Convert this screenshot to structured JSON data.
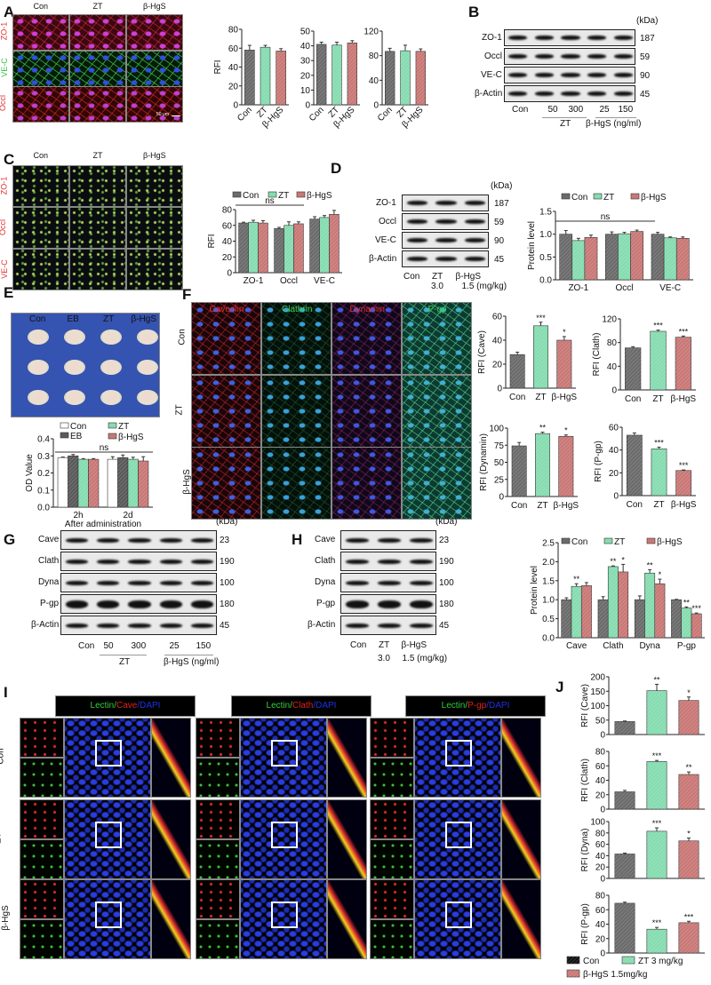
{
  "panel_letters": [
    "A",
    "B",
    "C",
    "D",
    "E",
    "F",
    "G",
    "H",
    "I",
    "J"
  ],
  "colors": {
    "con": "#6b6b6b",
    "zt": "#86dcb0",
    "hgs": "#c97876",
    "eb": "#5a5a5a",
    "con_white": "#ffffff"
  },
  "panel_a": {
    "columns": [
      "Con",
      "ZT",
      "β-HgS"
    ],
    "rows": [
      "ZO-1",
      "VE-C",
      "Occl"
    ],
    "scale_bar": "50 μm"
  },
  "panel_b": {
    "rows": [
      "ZO-1",
      "Occl",
      "VE-C",
      "β-Actin"
    ],
    "kda": [
      "187",
      "59",
      "90",
      "45"
    ],
    "kda_unit": "(kDa)",
    "lanes": [
      "Con",
      "50",
      "300",
      "25",
      "150"
    ],
    "groups": [
      "ZT",
      "β-HgS (ng/ml)"
    ]
  },
  "panel_c": {
    "columns": [
      "Con",
      "ZT",
      "β-HgS"
    ],
    "rows": [
      "ZO-1",
      "Occl",
      "VE-C"
    ]
  },
  "panel_d": {
    "rows": [
      "ZO-1",
      "Occl",
      "VE-C",
      "β-Actin"
    ],
    "kda": [
      "187",
      "59",
      "90",
      "45"
    ],
    "kda_unit": "(kDa)",
    "lanes": [
      "Con",
      "ZT",
      "β-HgS"
    ],
    "doses": [
      "3.0",
      "1.5 (mg/kg)"
    ]
  },
  "panel_e": {
    "columns": [
      "Con",
      "EB",
      "ZT",
      "β-HgS"
    ]
  },
  "panel_f": {
    "columns": [
      "Caveolin",
      "Clathrin",
      "Dynamin",
      "P-gp"
    ],
    "rows": [
      "Con",
      "ZT",
      "β-HgS"
    ]
  },
  "panel_g": {
    "rows": [
      "Cave",
      "Clath",
      "Dyna",
      "P-gp",
      "β-Actin"
    ],
    "kda": [
      "23",
      "190",
      "100",
      "180",
      "45"
    ],
    "kda_unit": "(kDa)",
    "lanes": [
      "Con",
      "50",
      "300",
      "25",
      "150"
    ],
    "groups": [
      "ZT",
      "β-HgS (ng/ml)"
    ]
  },
  "panel_h": {
    "rows": [
      "Cave",
      "Clath",
      "Dyna",
      "P-gp",
      "β-Actin"
    ],
    "kda": [
      "23",
      "190",
      "100",
      "180",
      "45"
    ],
    "kda_unit": "(kDa)",
    "lanes": [
      "Con",
      "ZT",
      "β-HgS"
    ],
    "doses": [
      "3.0",
      "1.5 (mg/kg)"
    ]
  },
  "panel_i": {
    "headers": [
      [
        "Lectin/",
        "Cave",
        "/DAPI"
      ],
      [
        "Lectin/",
        "Clath",
        "/DAPI"
      ],
      [
        "Lectin/",
        "P-gp",
        "/DAPI"
      ]
    ],
    "rows": [
      "Con",
      "ZT",
      "β-HgS"
    ]
  },
  "chart_data": [
    {
      "panel": "A",
      "type": "bar",
      "title": "",
      "ylabel": "RFI",
      "categories": [
        "Con",
        "ZT",
        "β-HgS"
      ],
      "values": [
        58,
        61,
        57
      ],
      "errors": [
        5,
        2,
        2.5
      ],
      "ylim": [
        0,
        80
      ],
      "yticks": [
        0,
        20,
        40,
        60,
        80
      ]
    },
    {
      "panel": "A",
      "type": "bar",
      "ylabel": "",
      "categories": [
        "Con",
        "ZT",
        "β-HgS"
      ],
      "values": [
        41,
        40.5,
        42
      ],
      "errors": [
        1.5,
        2,
        1.5
      ],
      "ylim": [
        0,
        50
      ],
      "yticks": [
        0,
        10,
        20,
        30,
        40,
        50
      ]
    },
    {
      "panel": "A",
      "type": "bar",
      "ylabel": "",
      "categories": [
        "Con",
        "ZT",
        "β-HgS"
      ],
      "values": [
        87,
        88,
        87
      ],
      "errors": [
        5,
        9,
        4
      ],
      "ylim": [
        0,
        120
      ],
      "yticks": [
        0,
        40,
        80,
        120
      ]
    },
    {
      "panel": "C",
      "type": "bar",
      "ylabel": "RFI",
      "categories": [
        "ZO-1",
        "Occl",
        "VE-C"
      ],
      "series": [
        {
          "name": "Con",
          "values": [
            63,
            56,
            68
          ],
          "errors": [
            1,
            1.5,
            3
          ]
        },
        {
          "name": "ZT",
          "values": [
            64,
            60,
            70
          ],
          "errors": [
            2.5,
            4.5,
            2.5
          ]
        },
        {
          "name": "β-HgS",
          "values": [
            63,
            62,
            74
          ],
          "errors": [
            3,
            2.5,
            5
          ]
        }
      ],
      "ylim": [
        0,
        80
      ],
      "yticks": [
        0,
        20,
        40,
        60,
        80
      ],
      "legend": "top",
      "annotation": "ns"
    },
    {
      "panel": "D",
      "type": "bar",
      "ylabel": "Protein level",
      "categories": [
        "ZO-1",
        "Occl",
        "VE-C"
      ],
      "series": [
        {
          "name": "Con",
          "values": [
            1.0,
            1.0,
            1.0
          ],
          "errors": [
            0.08,
            0.05,
            0.04
          ]
        },
        {
          "name": "ZT",
          "values": [
            0.86,
            1.01,
            0.92
          ],
          "errors": [
            0.05,
            0.03,
            0.02
          ]
        },
        {
          "name": "β-HgS",
          "values": [
            0.93,
            1.06,
            0.91
          ],
          "errors": [
            0.05,
            0.03,
            0.03
          ]
        }
      ],
      "ylim": [
        0,
        1.5
      ],
      "yticks": [
        "0.0",
        "0.5",
        "1.0",
        "1.5"
      ],
      "legend": "top",
      "annotation": "ns"
    },
    {
      "panel": "E",
      "type": "bar",
      "ylabel": "OD Value",
      "xlabel": "After administration",
      "categories": [
        "2h",
        "2d"
      ],
      "series": [
        {
          "name": "Con",
          "values": [
            0.29,
            0.28
          ],
          "errors": [
            0.003,
            0.015
          ]
        },
        {
          "name": "EB",
          "values": [
            0.3,
            0.29
          ],
          "errors": [
            0.008,
            0.015
          ]
        },
        {
          "name": "ZT",
          "values": [
            0.28,
            0.28
          ],
          "errors": [
            0.004,
            0.012
          ]
        },
        {
          "name": "β-HgS",
          "values": [
            0.28,
            0.27
          ],
          "errors": [
            0.004,
            0.025
          ]
        }
      ],
      "ylim": [
        0,
        0.4
      ],
      "yticks": [
        "0.0",
        "0.1",
        "0.2",
        "0.3",
        "0.4"
      ],
      "legend": "top",
      "annotation": "ns"
    },
    {
      "panel": "F",
      "type": "bar",
      "ylabel": "RFI (Cave)",
      "categories": [
        "Con",
        "ZT",
        "β-HgS"
      ],
      "values": [
        28,
        52,
        40
      ],
      "errors": [
        2,
        3,
        3
      ],
      "significance": [
        "",
        "***",
        "*"
      ],
      "ylim": [
        0,
        60
      ],
      "yticks": [
        0,
        20,
        40,
        60
      ]
    },
    {
      "panel": "F",
      "type": "bar",
      "ylabel": "RFI (Clath)",
      "categories": [
        "Con",
        "ZT",
        "β-HgS"
      ],
      "values": [
        71,
        99,
        89
      ],
      "errors": [
        2,
        2,
        2
      ],
      "significance": [
        "",
        "***",
        "***"
      ],
      "ylim": [
        0,
        120
      ],
      "yticks": [
        0,
        40,
        80,
        120
      ]
    },
    {
      "panel": "F",
      "type": "bar",
      "ylabel": "RFI (Dynamin)",
      "categories": [
        "Con",
        "ZT",
        "β-HgS"
      ],
      "values": [
        74,
        92,
        88
      ],
      "errors": [
        5,
        2,
        2
      ],
      "significance": [
        "",
        "**",
        "*"
      ],
      "ylim": [
        0,
        100
      ],
      "yticks": [
        0,
        25,
        50,
        75,
        100
      ]
    },
    {
      "panel": "F",
      "type": "bar",
      "ylabel": "RFI (P-gp)",
      "categories": [
        "Con",
        "ZT",
        "β-HgS"
      ],
      "values": [
        53,
        41,
        22
      ],
      "errors": [
        2,
        1.5,
        0.5
      ],
      "significance": [
        "",
        "***",
        "***"
      ],
      "ylim": [
        0,
        60
      ],
      "yticks": [
        0,
        20,
        40,
        60
      ]
    },
    {
      "panel": "H",
      "type": "bar",
      "ylabel": "Protein level",
      "categories": [
        "Cave",
        "Clath",
        "Dyna",
        "P-gp"
      ],
      "series": [
        {
          "name": "Con",
          "values": [
            1.0,
            1.0,
            1.0,
            1.0
          ],
          "errors": [
            0.05,
            0.08,
            0.1,
            0.01
          ],
          "significance": [
            "",
            "",
            "",
            ""
          ]
        },
        {
          "name": "ZT",
          "values": [
            1.35,
            1.87,
            1.7,
            0.78
          ],
          "errors": [
            0.07,
            0.02,
            0.09,
            0.03
          ],
          "significance": [
            "**",
            "**",
            "**",
            "**"
          ]
        },
        {
          "name": "β-HgS",
          "values": [
            1.37,
            1.73,
            1.42,
            0.63
          ],
          "errors": [
            0.08,
            0.2,
            0.12,
            0.02
          ],
          "significance": [
            "",
            "*",
            "*",
            "***"
          ]
        }
      ],
      "ylim": [
        0,
        2.5
      ],
      "yticks": [
        "0.0",
        "0.5",
        "1.0",
        "1.5",
        "2.0",
        "2.5"
      ],
      "legend": "top"
    },
    {
      "panel": "J",
      "type": "bar",
      "ylabel": "RFI (Cave)",
      "categories": [
        "Con",
        "ZT 3 mg/kg",
        "β-HgS 1.5mg/kg"
      ],
      "values": [
        45,
        152,
        118
      ],
      "errors": [
        2,
        22,
        12
      ],
      "significance": [
        "",
        "**",
        "*"
      ],
      "ylim": [
        0,
        200
      ],
      "yticks": [
        0,
        50,
        100,
        150,
        200
      ]
    },
    {
      "panel": "J",
      "type": "bar",
      "ylabel": "RFI (Clath)",
      "categories": [
        "Con",
        "ZT 3 mg/kg",
        "β-HgS 1.5mg/kg"
      ],
      "values": [
        24,
        66,
        48
      ],
      "errors": [
        2,
        1.5,
        3.5
      ],
      "significance": [
        "",
        "***",
        "**"
      ],
      "ylim": [
        0,
        80
      ],
      "yticks": [
        0,
        20,
        40,
        60,
        80
      ]
    },
    {
      "panel": "J",
      "type": "bar",
      "ylabel": "RFI (Dyna)",
      "categories": [
        "Con",
        "ZT 3 mg/kg",
        "β-HgS 1.5mg/kg"
      ],
      "values": [
        43,
        83,
        66
      ],
      "errors": [
        1.5,
        6,
        5
      ],
      "significance": [
        "",
        "***",
        "*"
      ],
      "ylim": [
        0,
        100
      ],
      "yticks": [
        0,
        20,
        40,
        60,
        80,
        100
      ]
    },
    {
      "panel": "J",
      "type": "bar",
      "ylabel": "RFI (P-gp)",
      "categories": [
        "Con",
        "ZT 3 mg/kg",
        "β-HgS 1.5mg/kg"
      ],
      "values": [
        69,
        33,
        42
      ],
      "errors": [
        1.5,
        2.5,
        2
      ],
      "significance": [
        "",
        "***",
        "***"
      ],
      "ylim": [
        0,
        80
      ],
      "yticks": [
        0,
        20,
        40,
        60,
        80
      ],
      "legend": "bottom"
    }
  ]
}
